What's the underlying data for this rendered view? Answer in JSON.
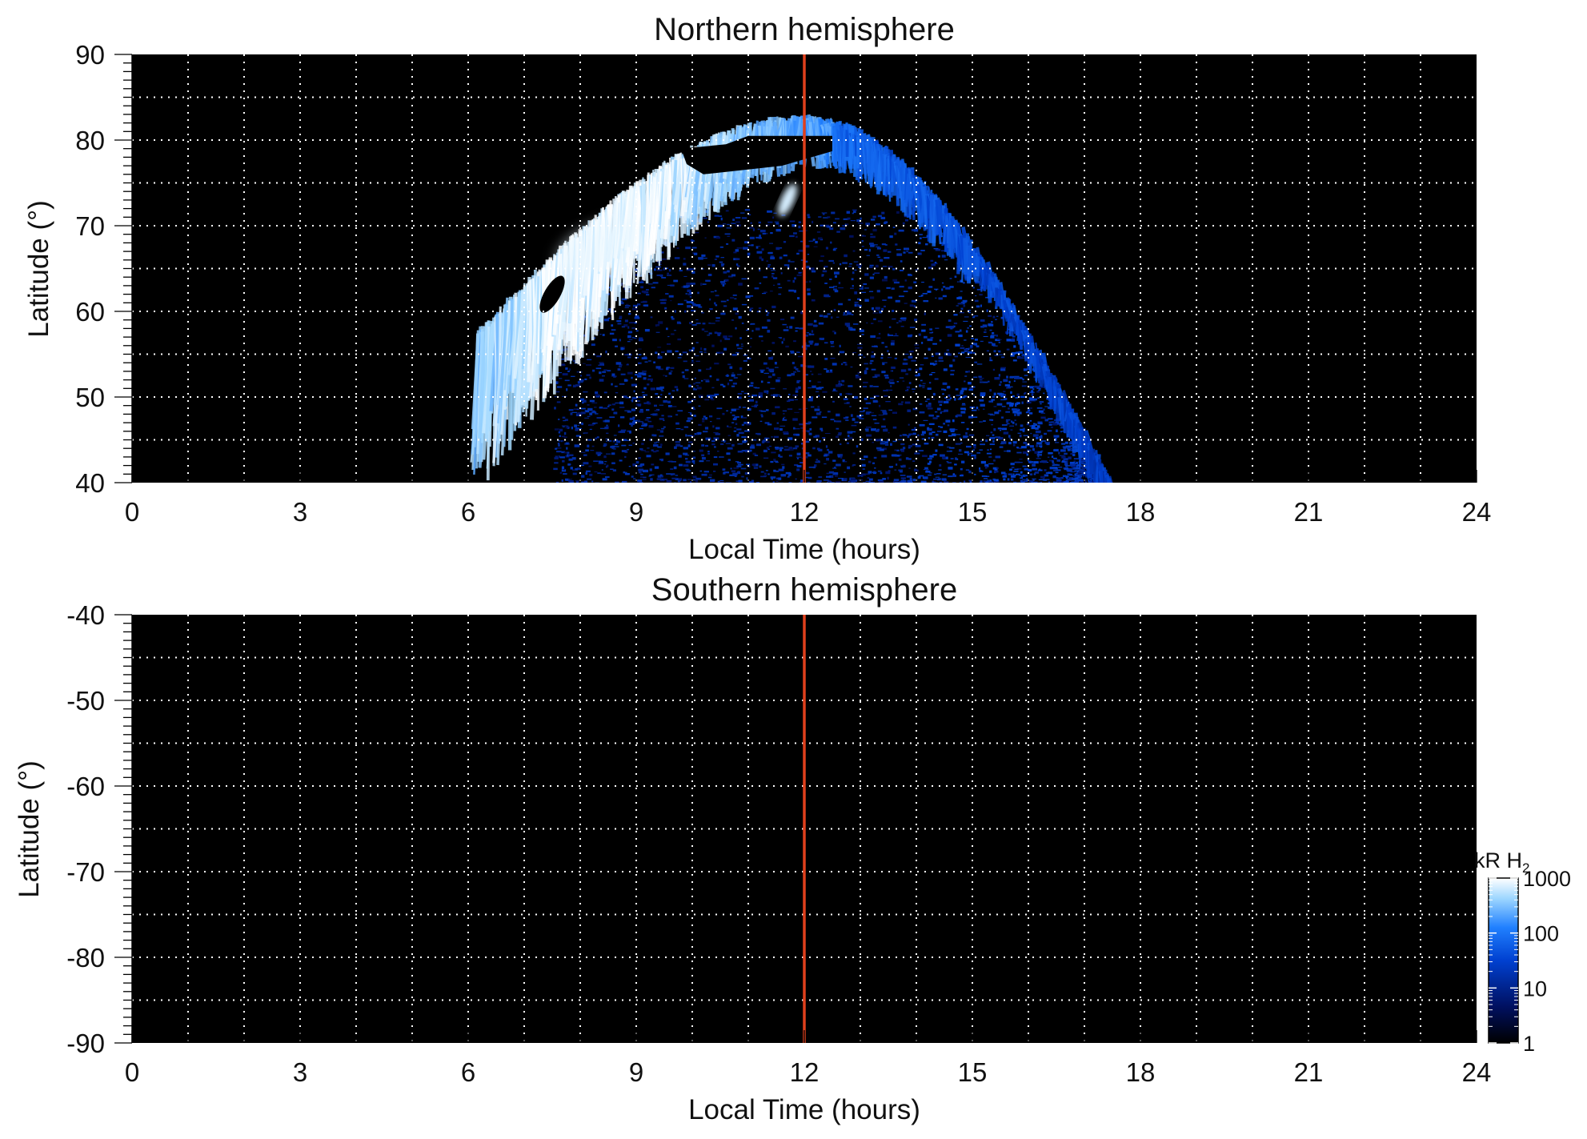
{
  "chart_data": [
    {
      "type": "heatmap",
      "title": "Northern hemisphere",
      "xlabel": "Local Time (hours)",
      "ylabel": "Latitude (°)",
      "xlim": [
        0,
        24
      ],
      "ylim": [
        40,
        90
      ],
      "xticks": [
        "0",
        "3",
        "6",
        "9",
        "12",
        "15",
        "18",
        "21",
        "24"
      ],
      "yticks": [
        "40",
        "50",
        "60",
        "70",
        "80",
        "90"
      ],
      "grid": true,
      "background": "#000000",
      "reference_line": {
        "x": 12,
        "color": "#e0401c"
      },
      "emission": {
        "main_oval": {
          "lt_start": 6.2,
          "lt_peak": 8.3,
          "lt_end": 17.5,
          "lat_dawn": 58,
          "lat_noon": 83,
          "lat_dusk_bottom": 40,
          "peak_kR": 900
        },
        "noon_gap": {
          "lt_start": 9.8,
          "lt_end": 12.5,
          "lat_min": 76,
          "lat_max": 80.5
        },
        "noon_spot": {
          "lt": 11.7,
          "lat": 73,
          "peak_kR": 700
        },
        "dawn_hole": {
          "lt": 7.5,
          "lat": 62
        },
        "diffuse_region": {
          "lt_start": 7.5,
          "lt_end": 17.5,
          "lat_min": 40,
          "lat_max": 72,
          "level_kR": 8
        }
      }
    },
    {
      "type": "heatmap",
      "title": "Southern hemisphere",
      "xlabel": "Local Time (hours)",
      "ylabel": "Latitude (°)",
      "xlim": [
        0,
        24
      ],
      "ylim": [
        -90,
        -40
      ],
      "xticks": [
        "0",
        "3",
        "6",
        "9",
        "12",
        "15",
        "18",
        "21",
        "24"
      ],
      "yticks": [
        "-90",
        "-80",
        "-70",
        "-60",
        "-50",
        "-40"
      ],
      "grid": true,
      "background": "#000000",
      "reference_line": {
        "x": 12,
        "color": "#e0401c"
      },
      "emission": null
    }
  ],
  "colorbar": {
    "title_main": "kR H",
    "title_sub": "2",
    "scale": "log",
    "ticks": [
      "1",
      "10",
      "100",
      "1000"
    ],
    "range": [
      1,
      1000
    ],
    "colors": [
      "#000000",
      "#001060",
      "#0040d0",
      "#2080ff",
      "#a0d8ff",
      "#ffffff"
    ]
  }
}
